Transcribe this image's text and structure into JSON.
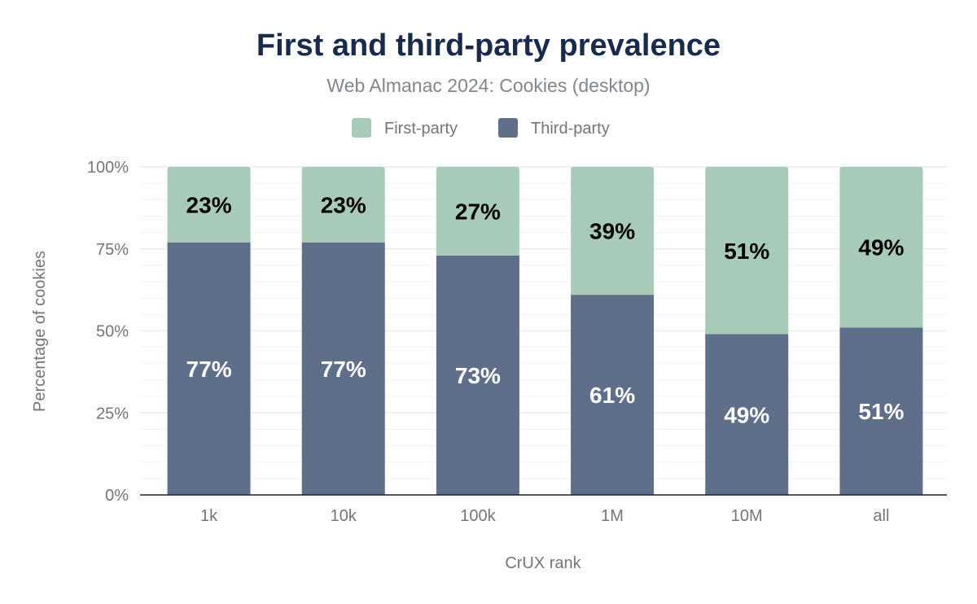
{
  "chart_data": {
    "type": "bar",
    "stacked": true,
    "title": "First and third-party prevalence",
    "subtitle": "Web Almanac 2024: Cookies (desktop)",
    "xlabel": "CrUX rank",
    "ylabel": "Percentage of cookies",
    "categories": [
      "1k",
      "10k",
      "100k",
      "1M",
      "10M",
      "all"
    ],
    "series": [
      {
        "name": "Third-party",
        "color": "#5f6f8a",
        "values": [
          77,
          77,
          73,
          61,
          49,
          51
        ],
        "labels": [
          "77%",
          "77%",
          "73%",
          "61%",
          "49%",
          "51%"
        ]
      },
      {
        "name": "First-party",
        "color": "#a8cbb9",
        "values": [
          23,
          23,
          27,
          39,
          51,
          49
        ],
        "labels": [
          "23%",
          "23%",
          "27%",
          "39%",
          "51%",
          "49%"
        ]
      }
    ],
    "legend": {
      "placement": "top",
      "order": [
        "First-party",
        "Third-party"
      ]
    },
    "ylim": [
      0,
      100
    ],
    "yticks": [
      "0%",
      "25%",
      "50%",
      "75%",
      "100%"
    ],
    "ytick_values": [
      0,
      25,
      50,
      75,
      100
    ],
    "grid": true,
    "minor_grid_step": 5
  }
}
